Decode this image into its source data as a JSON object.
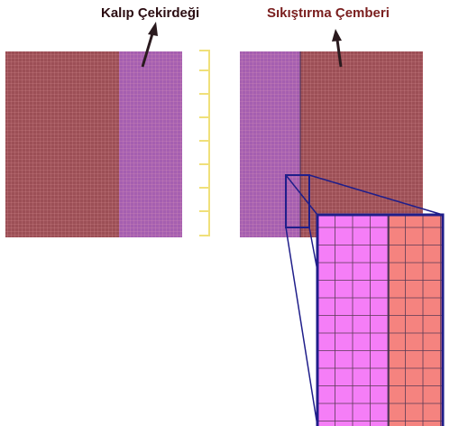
{
  "labels": {
    "core": "Kalıp Çekirdeği",
    "ring": "Sıkıştırma Çemberi"
  },
  "colors": {
    "core_label": "#2b0d12",
    "ring_label": "#7a1e1e",
    "mesh_red": "#9c4f56",
    "mesh_purple": "#a55fb0",
    "zoom_pink": "#f57ef7",
    "zoom_salmon": "#f5837f",
    "grid_line": "#5a3a55",
    "zoom_outline": "#1f1e8a",
    "axis_yellow": "#f0e07a",
    "arrow": "#2a1a1e"
  }
}
